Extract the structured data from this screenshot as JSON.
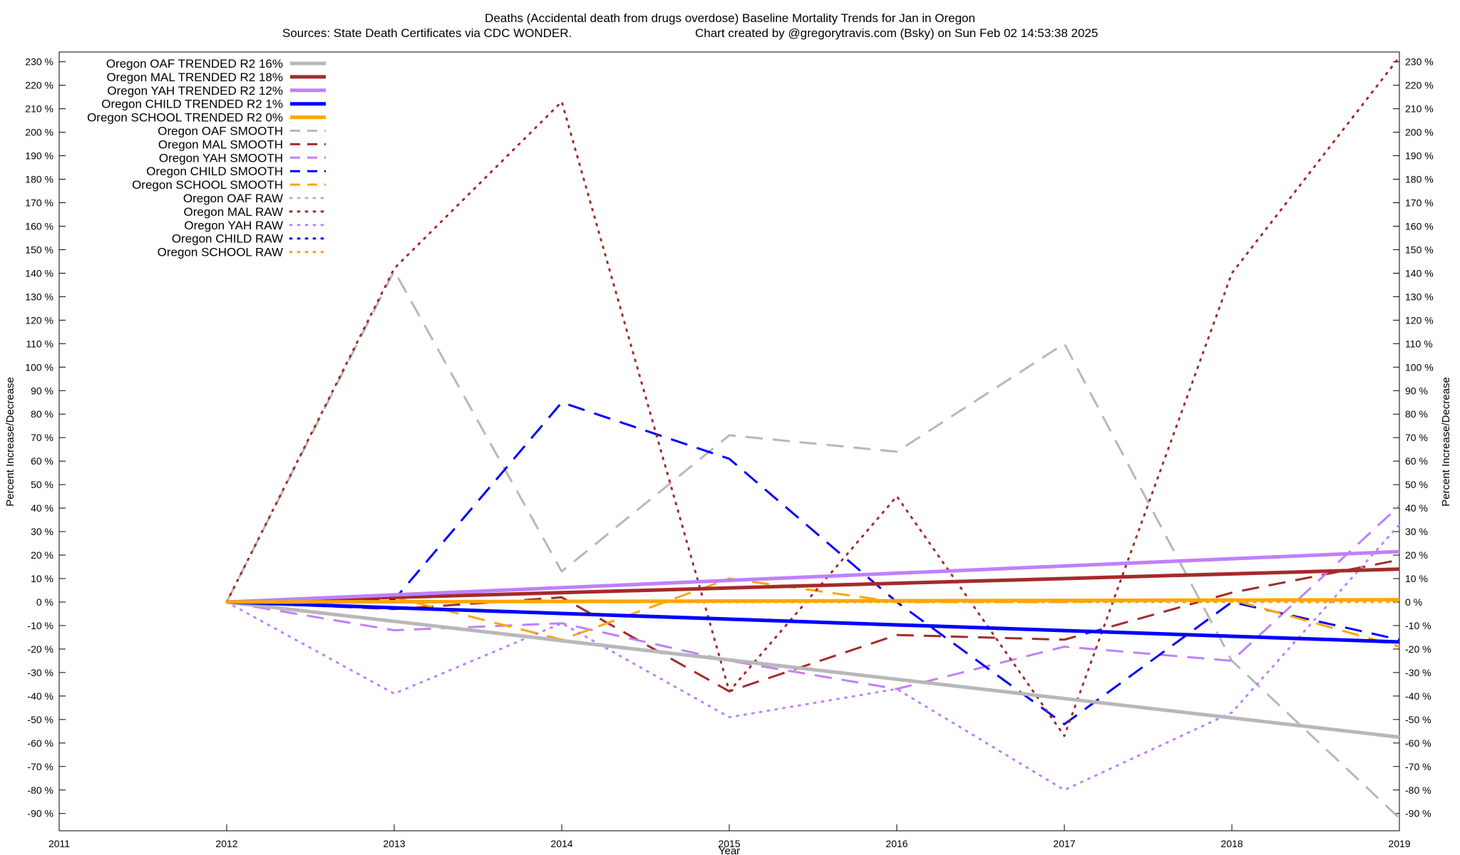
{
  "chart_data": {
    "type": "line",
    "title": "Deaths (Accidental death from drugs overdose)  Baseline Mortality Trends for Jan in Oregon",
    "subtitle_left": "Sources: State Death Certificates via CDC WONDER.",
    "subtitle_right": "Chart created by @gregorytravis.com (Bsky) on Sun Feb 02 14:53:38 2025",
    "xlabel": "Year",
    "ylabel": "Percent Increase/Decrease",
    "ylabel_right": "Percent Increase/Decrease",
    "xlim": [
      2011,
      2019
    ],
    "ylim": [
      -95,
      235
    ],
    "x_ticks": [
      "2011",
      "2012",
      "2013",
      "2014",
      "2015",
      "2016",
      "2017",
      "2018",
      "2019"
    ],
    "y_ticks": [
      230,
      220,
      210,
      200,
      190,
      180,
      170,
      160,
      150,
      140,
      130,
      120,
      110,
      100,
      90,
      80,
      70,
      60,
      50,
      40,
      30,
      20,
      10,
      0,
      -10,
      -20,
      -30,
      -40,
      -50,
      -60,
      -70,
      -80,
      -90
    ],
    "y_tick_suffix": " %",
    "grid": false,
    "legend_position": "top-left",
    "series": [
      {
        "name": "Oregon OAF TRENDED R2  16%",
        "color": "#b8b8b8",
        "style": "solid",
        "x": [
          2012,
          2019
        ],
        "y": [
          0,
          -57.5
        ]
      },
      {
        "name": "Oregon MAL TRENDED R2  18%",
        "color": "#a52a2a",
        "style": "solid",
        "x": [
          2012,
          2019
        ],
        "y": [
          0,
          14
        ]
      },
      {
        "name": "Oregon YAH TRENDED R2  12%",
        "color": "#c080ff",
        "style": "solid",
        "x": [
          2012,
          2019
        ],
        "y": [
          0,
          21.5
        ]
      },
      {
        "name": "Oregon CHILD TRENDED R2   1%",
        "color": "#0000ff",
        "style": "solid",
        "x": [
          2012,
          2019
        ],
        "y": [
          0,
          -17
        ]
      },
      {
        "name": "Oregon SCHOOL TRENDED R2   0%",
        "color": "#ffa500",
        "style": "solid",
        "x": [
          2012,
          2019
        ],
        "y": [
          0,
          1
        ]
      },
      {
        "name": "Oregon OAF SMOOTH",
        "color": "#b8b8b8",
        "style": "dashed",
        "x": [
          2012,
          2013,
          2014,
          2015,
          2016,
          2017,
          2018,
          2019
        ],
        "y": [
          0,
          141,
          13,
          71,
          64,
          110,
          -25,
          -92
        ]
      },
      {
        "name": "Oregon MAL SMOOTH",
        "color": "#a52a2a",
        "style": "dashed",
        "x": [
          2012,
          2013,
          2014,
          2015,
          2016,
          2017,
          2018,
          2019
        ],
        "y": [
          0,
          -3,
          2,
          -38,
          -14,
          -16,
          4,
          18
        ]
      },
      {
        "name": "Oregon YAH SMOOTH",
        "color": "#c080ff",
        "style": "dashed",
        "x": [
          2012,
          2013,
          2014,
          2015,
          2016,
          2017,
          2018,
          2019
        ],
        "y": [
          0,
          -12,
          -9,
          -25,
          -37,
          -19,
          -25,
          41
        ]
      },
      {
        "name": "Oregon CHILD SMOOTH",
        "color": "#0000ff",
        "style": "dashed",
        "x": [
          2012,
          2013,
          2014,
          2015,
          2016,
          2017,
          2018,
          2019
        ],
        "y": [
          0,
          1,
          85,
          61,
          0,
          -52,
          0,
          -16
        ]
      },
      {
        "name": "Oregon SCHOOL SMOOTH",
        "color": "#ffa500",
        "style": "dashed",
        "x": [
          2012,
          2013,
          2014,
          2015,
          2016,
          2017,
          2018,
          2019
        ],
        "y": [
          0,
          2,
          -16,
          10,
          0,
          0,
          1,
          -19
        ]
      },
      {
        "name": "Oregon OAF RAW",
        "color": "#b8b8b8",
        "style": "dotted",
        "x": [
          2012,
          2013,
          2014,
          2015,
          2016,
          2017,
          2018,
          2019
        ],
        "y": [
          0,
          0,
          0,
          0,
          0,
          0,
          0,
          0
        ]
      },
      {
        "name": "Oregon MAL RAW",
        "color": "#a52a2a",
        "style": "dotted",
        "x": [
          2012,
          2013,
          2014,
          2015,
          2016,
          2017,
          2018,
          2019
        ],
        "y": [
          0,
          142,
          213,
          -38,
          45,
          -57,
          140,
          232
        ]
      },
      {
        "name": "Oregon YAH RAW",
        "color": "#c080ff",
        "style": "dotted",
        "x": [
          2012,
          2013,
          2014,
          2015,
          2016,
          2017,
          2018,
          2019
        ],
        "y": [
          0,
          -39,
          -9,
          -49,
          -37,
          -80,
          -47,
          33
        ]
      },
      {
        "name": "Oregon CHILD RAW",
        "color": "#0000ff",
        "style": "dotted",
        "x": [
          2012,
          2013,
          2014,
          2015,
          2016,
          2017,
          2018,
          2019
        ],
        "y": [
          0,
          0,
          0,
          0,
          0,
          0,
          0,
          0
        ]
      },
      {
        "name": "Oregon SCHOOL RAW",
        "color": "#ffa500",
        "style": "dotted",
        "x": [
          2012,
          2013,
          2014,
          2015,
          2016,
          2017,
          2018,
          2019
        ],
        "y": [
          0,
          0,
          0,
          0,
          0,
          0,
          0,
          0
        ]
      }
    ]
  }
}
